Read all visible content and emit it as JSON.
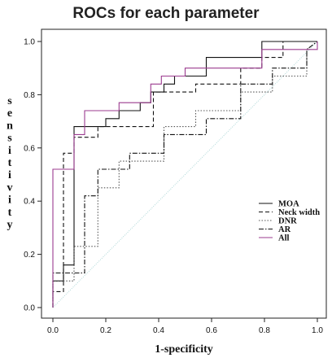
{
  "chart_data": {
    "type": "line",
    "title": "ROCs for each parameter",
    "xlabel": "1-specificity",
    "ylabel": "sensitivity",
    "xlim": [
      0,
      1
    ],
    "ylim": [
      0,
      1
    ],
    "x_ticks": [
      "0.0",
      "0.2",
      "0.4",
      "0.6",
      "0.8",
      "1.0"
    ],
    "y_ticks": [
      "0.0",
      "0.2",
      "0.4",
      "0.6",
      "0.8",
      "1.0"
    ],
    "grid": false,
    "legend_position": "right",
    "reference_line": {
      "x": [
        0,
        1
      ],
      "y": [
        0,
        1
      ],
      "color": "#b0d8d8"
    },
    "series": [
      {
        "name": "MOA",
        "color": "#111111",
        "dash": "none",
        "x": [
          0,
          0,
          0.04,
          0.04,
          0.08,
          0.08,
          0.2,
          0.2,
          0.25,
          0.25,
          0.33,
          0.33,
          0.37,
          0.37,
          0.42,
          0.42,
          0.46,
          0.46,
          0.58,
          0.58,
          0.79,
          0.79,
          1.0
        ],
        "y": [
          0,
          0.1,
          0.1,
          0.16,
          0.16,
          0.68,
          0.68,
          0.71,
          0.71,
          0.74,
          0.74,
          0.77,
          0.77,
          0.81,
          0.81,
          0.84,
          0.84,
          0.87,
          0.87,
          0.94,
          0.94,
          1.0,
          1.0
        ]
      },
      {
        "name": "Neck width",
        "color": "#111111",
        "dash": "5,3",
        "x": [
          0,
          0,
          0.04,
          0.04,
          0.08,
          0.08,
          0.17,
          0.17,
          0.38,
          0.38,
          0.54,
          0.54,
          0.71,
          0.71,
          0.79,
          0.79,
          0.87,
          0.87,
          1.0
        ],
        "y": [
          0,
          0.06,
          0.06,
          0.58,
          0.58,
          0.64,
          0.64,
          0.68,
          0.68,
          0.81,
          0.81,
          0.84,
          0.84,
          0.9,
          0.9,
          0.94,
          0.94,
          1.0,
          1.0
        ]
      },
      {
        "name": "DNR",
        "color": "#555555",
        "dash": "1.5,2",
        "x": [
          0,
          0,
          0.08,
          0.08,
          0.17,
          0.17,
          0.25,
          0.25,
          0.42,
          0.42,
          0.54,
          0.54,
          0.71,
          0.71,
          0.83,
          0.83,
          0.96,
          0.96,
          1.0
        ],
        "y": [
          0,
          0.1,
          0.1,
          0.23,
          0.23,
          0.45,
          0.45,
          0.55,
          0.55,
          0.68,
          0.68,
          0.74,
          0.74,
          0.81,
          0.81,
          0.87,
          0.87,
          0.97,
          1.0
        ]
      },
      {
        "name": "AR",
        "color": "#111111",
        "dash": "6,2,1.5,2",
        "x": [
          0,
          0,
          0.12,
          0.12,
          0.17,
          0.17,
          0.29,
          0.29,
          0.42,
          0.42,
          0.58,
          0.58,
          0.71,
          0.71,
          0.83,
          0.83,
          0.96,
          0.96,
          1.0
        ],
        "y": [
          0,
          0.13,
          0.13,
          0.42,
          0.42,
          0.52,
          0.52,
          0.58,
          0.58,
          0.65,
          0.65,
          0.71,
          0.71,
          0.84,
          0.84,
          0.9,
          0.9,
          0.97,
          1.0
        ]
      },
      {
        "name": "All",
        "color": "#9b3b8f",
        "dash": "none",
        "x": [
          0,
          0,
          0.08,
          0.08,
          0.12,
          0.12,
          0.25,
          0.25,
          0.37,
          0.37,
          0.41,
          0.41,
          0.5,
          0.5,
          0.79,
          0.79,
          1.0,
          1.0
        ],
        "y": [
          0,
          0.52,
          0.52,
          0.65,
          0.65,
          0.74,
          0.74,
          0.77,
          0.77,
          0.84,
          0.84,
          0.87,
          0.87,
          0.9,
          0.9,
          0.97,
          0.97,
          1.0
        ]
      }
    ]
  }
}
